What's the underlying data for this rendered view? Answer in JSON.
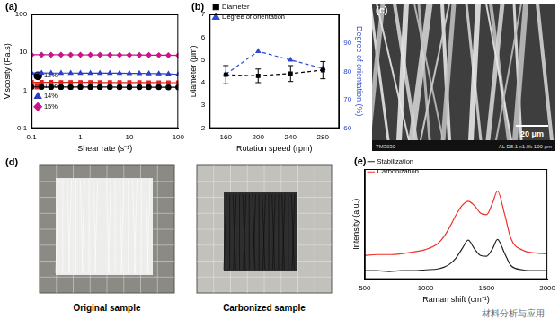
{
  "chart_data": [
    {
      "panel": "(a)",
      "type": "line",
      "log": true,
      "xlabel": "Shear rate (s⁻¹)",
      "ylabel": "Viscosity (Pa.s)",
      "x": [
        0.1,
        0.16,
        0.25,
        0.4,
        0.63,
        1,
        1.6,
        2.5,
        4,
        6.3,
        10,
        16,
        25,
        40,
        63,
        100
      ],
      "xlim": [
        0.1,
        100
      ],
      "xticks": [
        0.1,
        1,
        10,
        100
      ],
      "ylim": [
        0.1,
        100
      ],
      "yticks": [
        0.1,
        1,
        10,
        100
      ],
      "grid": false,
      "legend": "upper right",
      "series": [
        {
          "name": "12%",
          "color": "#000000",
          "marker": "circle",
          "values": [
            1.22,
            1.22,
            1.21,
            1.21,
            1.21,
            1.21,
            1.21,
            1.21,
            1.21,
            1.2,
            1.2,
            1.2,
            1.2,
            1.2,
            1.19,
            1.19
          ]
        },
        {
          "name": "13%",
          "color": "#e0201b",
          "marker": "square",
          "values": [
            1.62,
            1.62,
            1.62,
            1.61,
            1.61,
            1.61,
            1.61,
            1.6,
            1.6,
            1.6,
            1.6,
            1.6,
            1.59,
            1.59,
            1.58,
            1.58
          ]
        },
        {
          "name": "14%",
          "color": "#2a3fc4",
          "marker": "triangle",
          "values": [
            2.85,
            2.85,
            2.84,
            2.84,
            2.84,
            2.83,
            2.83,
            2.82,
            2.82,
            2.81,
            2.8,
            2.79,
            2.77,
            2.74,
            2.7,
            2.62
          ]
        },
        {
          "name": "15%",
          "color": "#c8168a",
          "marker": "diamond",
          "values": [
            8.6,
            8.6,
            8.6,
            8.6,
            8.58,
            8.58,
            8.56,
            8.55,
            8.54,
            8.52,
            8.5,
            8.48,
            8.45,
            8.42,
            8.38,
            8.3
          ]
        }
      ]
    },
    {
      "panel": "(b)",
      "type": "line",
      "xlabel": "Rotation speed (rpm)",
      "ylabel": "Diameter (μm)",
      "y2label": "Degree of orientation (%)",
      "x": [
        160,
        200,
        240,
        280
      ],
      "xlim": [
        140,
        300
      ],
      "xticks": [
        160,
        200,
        240,
        280
      ],
      "ylim": [
        2,
        7
      ],
      "yticks": [
        2,
        3,
        4,
        5,
        6,
        7
      ],
      "y2lim": [
        60,
        100
      ],
      "y2ticks": [
        60,
        70,
        80,
        90
      ],
      "grid": false,
      "legend": "upper left",
      "series": [
        {
          "name": "Diameter",
          "color": "#000000",
          "marker": "square",
          "line_style": "dashed",
          "values": [
            4.35,
            4.3,
            4.4,
            4.55
          ],
          "errors": [
            0.4,
            0.3,
            0.35,
            0.38
          ]
        },
        {
          "name": "Degree of orientation",
          "color": "#2e4bd1",
          "marker": "triangle",
          "line_style": "dashed",
          "axis": "y2",
          "values": [
            79,
            87,
            84,
            81
          ]
        }
      ]
    },
    {
      "panel": "(e)",
      "type": "line",
      "xlabel": "Raman shift (cm⁻¹)",
      "ylabel": "Intensity (a.u.)",
      "x": [
        500,
        600,
        700,
        800,
        900,
        1000,
        1100,
        1150,
        1200,
        1250,
        1300,
        1350,
        1400,
        1450,
        1500,
        1550,
        1590,
        1650,
        1700,
        1800,
        1900,
        2000
      ],
      "xlim": [
        500,
        2000
      ],
      "xticks": [
        500,
        1000,
        1500,
        2000
      ],
      "ylim": [
        0,
        13
      ],
      "tick_labels": "x",
      "grid": false,
      "legend": "upper left",
      "series": [
        {
          "name": "Stabilization",
          "color": "#222222",
          "line_style": "solid",
          "values": [
            1.0,
            1.0,
            0.9,
            1.0,
            1.0,
            1.1,
            1.2,
            1.4,
            1.8,
            2.5,
            3.6,
            4.6,
            3.6,
            2.8,
            2.7,
            3.6,
            4.7,
            3.0,
            1.6,
            1.1,
            1.0,
            1.0
          ]
        },
        {
          "name": "Carbonization",
          "color": "#f0302a",
          "line_style": "solid",
          "values": [
            2.8,
            2.9,
            2.9,
            3.0,
            3.2,
            3.5,
            4.2,
            5.0,
            6.2,
            7.6,
            8.7,
            9.2,
            8.7,
            7.8,
            7.6,
            9.0,
            10.4,
            7.6,
            4.8,
            3.4,
            3.1,
            3.0
          ]
        }
      ]
    }
  ],
  "figures": [
    {
      "panel": "(c)",
      "scale_bar": "20 μm",
      "info": [
        "TM3030",
        "AL D8.1 x1.0k 100 μm"
      ]
    },
    {
      "panel": "(d)",
      "captions": [
        "Original sample",
        "Carbonized sample"
      ]
    }
  ],
  "watermark": "材料分析与应用"
}
